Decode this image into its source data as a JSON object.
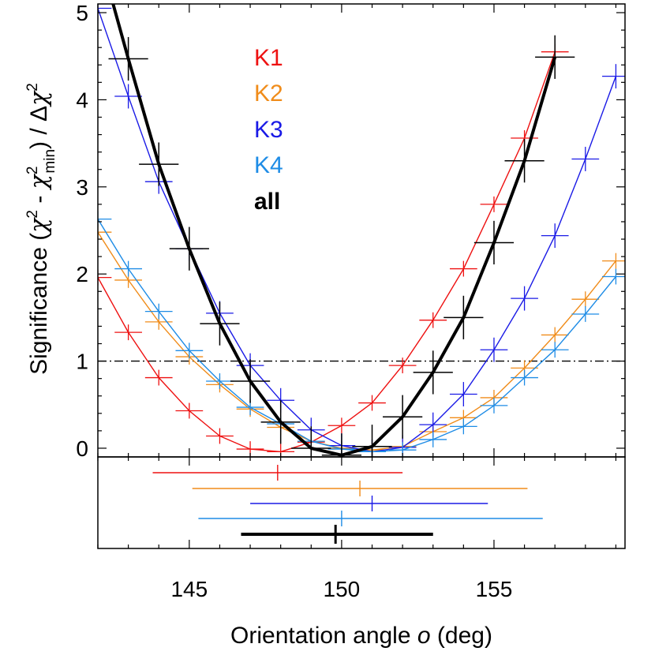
{
  "chart_data": {
    "type": "line",
    "xlabel_prefix": "Orientation angle ",
    "xlabel_symbol": "o",
    "xlabel_suffix": " (deg)",
    "ylabel_parts": [
      "Significance (",
      "χ",
      "2",
      " - ",
      "χ",
      "2",
      "min",
      ") / Δ",
      "χ",
      "2"
    ],
    "xlim": [
      142,
      159.3
    ],
    "ylim": [
      -0.1,
      5.1
    ],
    "x_ticks": [
      145,
      150,
      155
    ],
    "y_ticks": [
      0,
      1,
      2,
      3,
      4,
      5
    ],
    "threshold": {
      "y": 1,
      "style": "dash-dot",
      "color": "#000000"
    },
    "legend": {
      "position": "top-left"
    },
    "series": [
      {
        "name": "K1",
        "color": "#ee1111",
        "width": 1.4,
        "x": [
          142,
          143,
          144,
          145,
          146,
          147,
          148,
          149,
          150,
          151,
          152,
          153,
          154,
          155,
          156,
          157
        ],
        "y": [
          1.96,
          1.33,
          0.81,
          0.43,
          0.14,
          -0.01,
          -0.04,
          0.07,
          0.26,
          0.52,
          0.95,
          1.47,
          2.06,
          2.8,
          3.56,
          4.55
        ],
        "err": {
          "xerr": 0.45,
          "yerr": 0.09
        }
      },
      {
        "name": "K2",
        "color": "#f08c1a",
        "width": 1.4,
        "x": [
          142,
          143,
          144,
          145,
          146,
          147,
          148,
          149,
          150,
          151,
          152,
          153,
          154,
          155,
          156,
          157,
          158,
          159
        ],
        "y": [
          2.48,
          1.93,
          1.45,
          1.05,
          0.73,
          0.45,
          0.24,
          0.08,
          0.0,
          -0.02,
          0.02,
          0.19,
          0.35,
          0.58,
          0.92,
          1.3,
          1.71,
          2.15
        ],
        "err": {
          "xerr": 0.45,
          "yerr": 0.09
        }
      },
      {
        "name": "K3",
        "color": "#1a1ae6",
        "width": 1.4,
        "x": [
          142,
          143,
          144,
          145,
          146,
          147,
          148,
          149,
          150,
          151,
          152,
          153,
          154,
          155,
          156,
          157,
          158,
          159
        ],
        "y": [
          5.05,
          4.04,
          3.06,
          2.29,
          1.55,
          0.95,
          0.55,
          0.21,
          0.03,
          -0.04,
          0.01,
          0.27,
          0.62,
          1.13,
          1.72,
          2.44,
          3.32,
          4.27
        ],
        "err": {
          "xerr": 0.45,
          "yerr": 0.14
        }
      },
      {
        "name": "K4",
        "color": "#1e8ce6",
        "width": 1.4,
        "x": [
          142,
          143,
          144,
          145,
          146,
          147,
          148,
          149,
          150,
          151,
          152,
          153,
          154,
          155,
          156,
          157,
          158,
          159
        ],
        "y": [
          2.63,
          2.06,
          1.57,
          1.12,
          0.77,
          0.47,
          0.28,
          0.08,
          -0.01,
          -0.04,
          -0.02,
          0.1,
          0.25,
          0.49,
          0.81,
          1.13,
          1.54,
          1.97
        ],
        "err": {
          "xerr": 0.45,
          "yerr": 0.09
        }
      },
      {
        "name": "all",
        "color": "#000000",
        "width": 4,
        "x": [
          142.5,
          143,
          144,
          145,
          146,
          147,
          148,
          149,
          150,
          151,
          152,
          153,
          154,
          155,
          156,
          157
        ],
        "y": [
          5.1,
          4.47,
          3.26,
          2.29,
          1.43,
          0.77,
          0.3,
          0.0,
          -0.08,
          0.02,
          0.36,
          0.87,
          1.5,
          2.36,
          3.3,
          4.49
        ],
        "err": {
          "xerr": 0.65,
          "yerr": 0.25
        },
        "err_x_start": 143
      }
    ],
    "intervals": [
      {
        "series": "K1",
        "center": 147.9,
        "low": 143.8,
        "high": 152.0
      },
      {
        "series": "K2",
        "center": 150.6,
        "low": 145.1,
        "high": 156.1
      },
      {
        "series": "K3",
        "center": 151.0,
        "low": 147.0,
        "high": 154.8
      },
      {
        "series": "K4",
        "center": 150.0,
        "low": 145.3,
        "high": 156.6
      },
      {
        "series": "all",
        "center": 149.8,
        "low": 146.7,
        "high": 153.0
      }
    ]
  }
}
